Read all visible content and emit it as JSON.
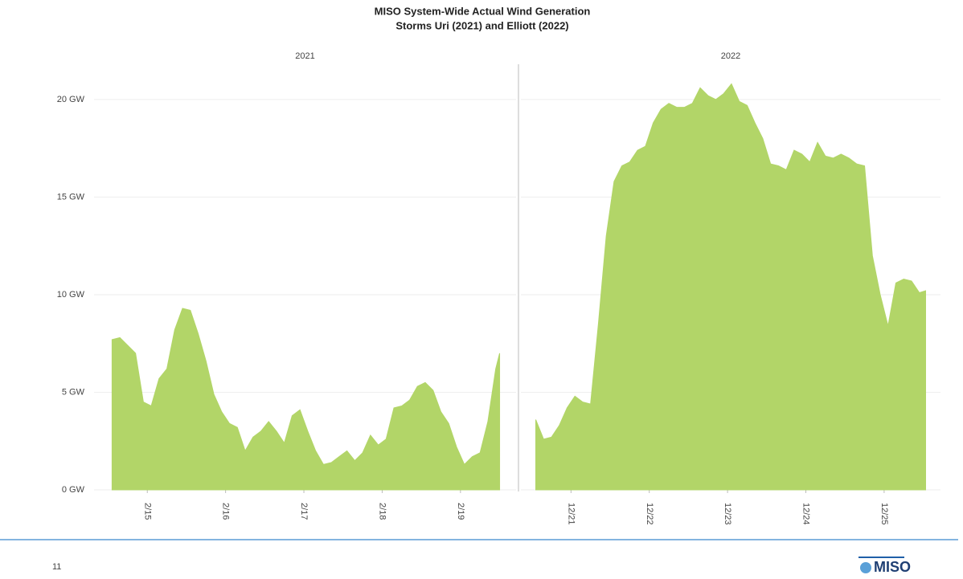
{
  "title": "MISO System-Wide Actual Wind Generation",
  "subtitle": "Storms Uri (2021) and Elliott (2022)",
  "chart_data": [
    {
      "type": "area",
      "title": "2021",
      "color": "#b2d568",
      "grid": true,
      "xlim": [
        14.32,
        19.71
      ],
      "ylim": [
        0,
        21.6
      ],
      "xticks": [
        {
          "value": 15,
          "label": "2/15"
        },
        {
          "value": 16,
          "label": "2/16"
        },
        {
          "value": 17,
          "label": "2/17"
        },
        {
          "value": 18,
          "label": "2/18"
        },
        {
          "value": 19,
          "label": "2/19"
        }
      ],
      "yticks": [
        {
          "value": 0,
          "label": "0 GW"
        },
        {
          "value": 5,
          "label": "5 GW"
        },
        {
          "value": 10,
          "label": "10 GW"
        },
        {
          "value": 15,
          "label": "15 GW"
        },
        {
          "value": 20,
          "label": "20 GW"
        }
      ],
      "x": [
        14.55,
        14.65,
        14.75,
        14.85,
        14.95,
        15.05,
        15.15,
        15.25,
        15.35,
        15.45,
        15.55,
        15.65,
        15.75,
        15.85,
        15.95,
        16.05,
        16.15,
        16.25,
        16.35,
        16.45,
        16.55,
        16.65,
        16.75,
        16.85,
        16.95,
        17.05,
        17.15,
        17.25,
        17.35,
        17.45,
        17.55,
        17.65,
        17.75,
        17.85,
        17.95,
        18.05,
        18.15,
        18.25,
        18.35,
        18.45,
        18.55,
        18.65,
        18.75,
        18.85,
        18.95,
        19.05,
        19.15,
        19.25,
        19.35,
        19.45,
        19.5
      ],
      "values": [
        7.7,
        7.8,
        7.4,
        7.0,
        4.5,
        4.3,
        5.7,
        6.2,
        8.2,
        9.3,
        9.2,
        8.0,
        6.6,
        4.9,
        4.0,
        3.4,
        3.2,
        2.0,
        2.7,
        3.0,
        3.5,
        3.0,
        2.4,
        3.8,
        4.1,
        3.0,
        2.0,
        1.3,
        1.4,
        1.7,
        2.0,
        1.5,
        1.9,
        2.8,
        2.3,
        2.6,
        4.2,
        4.3,
        4.6,
        5.3,
        5.5,
        5.1,
        4.0,
        3.4,
        2.2,
        1.3,
        1.7,
        1.9,
        3.5,
        6.2,
        7.0
      ]
    },
    {
      "type": "area",
      "title": "2022",
      "color": "#b2d568",
      "grid": true,
      "xlim": [
        20.36,
        25.72
      ],
      "xticks": [
        {
          "value": 21,
          "label": "12/21"
        },
        {
          "value": 22,
          "label": "12/22"
        },
        {
          "value": 23,
          "label": "12/23"
        },
        {
          "value": 24,
          "label": "12/24"
        },
        {
          "value": 25,
          "label": "12/25"
        }
      ],
      "x": [
        20.55,
        20.65,
        20.75,
        20.85,
        20.95,
        21.05,
        21.15,
        21.25,
        21.35,
        21.45,
        21.55,
        21.65,
        21.75,
        21.85,
        21.95,
        22.05,
        22.15,
        22.25,
        22.35,
        22.45,
        22.55,
        22.65,
        22.75,
        22.85,
        22.95,
        23.05,
        23.15,
        23.25,
        23.35,
        23.45,
        23.55,
        23.65,
        23.75,
        23.85,
        23.95,
        24.05,
        24.15,
        24.25,
        24.35,
        24.45,
        24.55,
        24.65,
        24.75,
        24.85,
        24.95,
        25.05,
        25.15,
        25.25,
        25.35,
        25.45,
        25.53
      ],
      "values": [
        3.6,
        2.6,
        2.7,
        3.3,
        4.2,
        4.8,
        4.5,
        4.4,
        8.5,
        13.0,
        15.8,
        16.6,
        16.8,
        17.4,
        17.6,
        18.8,
        19.5,
        19.8,
        19.6,
        19.6,
        19.8,
        20.6,
        20.2,
        20.0,
        20.3,
        20.8,
        19.9,
        19.7,
        18.8,
        18.0,
        16.7,
        16.6,
        16.4,
        17.4,
        17.2,
        16.8,
        17.8,
        17.1,
        17.0,
        17.2,
        17.0,
        16.7,
        16.6,
        12.0,
        10.0,
        8.4,
        10.6,
        10.8,
        10.7,
        10.1,
        10.2
      ]
    }
  ],
  "page_number": "11",
  "logo": "MISO"
}
